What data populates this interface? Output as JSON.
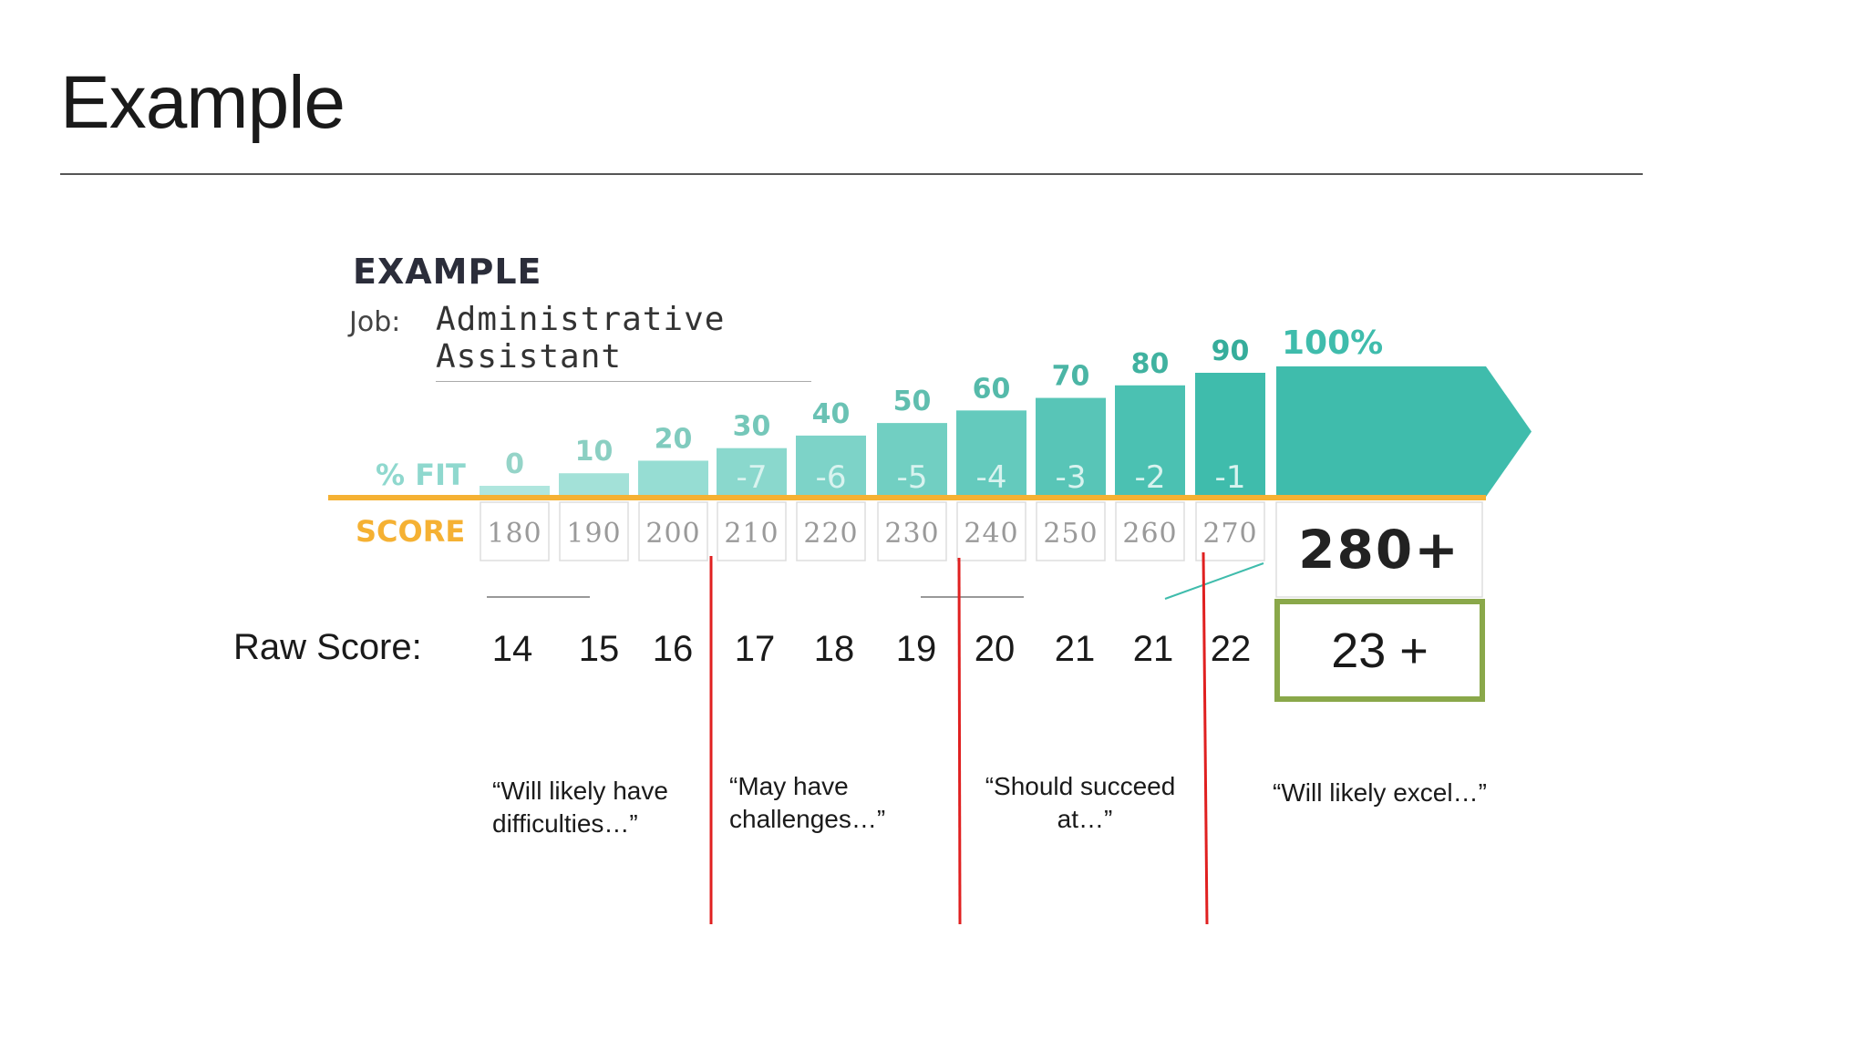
{
  "slide": {
    "title": "Example"
  },
  "example": {
    "heading": "EXAMPLE",
    "job_label": "Job:",
    "job_value": "Administrative Assistant"
  },
  "colors": {
    "teal": "#3fbcac",
    "teal_light": "#8fd8ce",
    "orange": "#f5b133",
    "red": "#e02020",
    "green": "#8aa84a"
  },
  "chart_data": {
    "type": "bar",
    "row_labels": {
      "fit": "% FIT",
      "score": "SCORE"
    },
    "categories": [
      "180",
      "190",
      "200",
      "210",
      "220",
      "230",
      "240",
      "250",
      "260",
      "270",
      "280+"
    ],
    "values": [
      0,
      10,
      20,
      30,
      40,
      50,
      60,
      70,
      80,
      90,
      100
    ],
    "value_labels": [
      "0",
      "10",
      "20",
      "30",
      "40",
      "50",
      "60",
      "70",
      "80",
      "90",
      "100%"
    ],
    "inner_labels": [
      "",
      "",
      "",
      "-7",
      "-6",
      "-5",
      "-4",
      "-3",
      "-2",
      "-1",
      ""
    ],
    "ylim": [
      0,
      100
    ]
  },
  "raw": {
    "label": "Raw Score:",
    "values": [
      "14",
      "15",
      "16",
      "17",
      "18",
      "19",
      "20",
      "21",
      "21",
      "22"
    ],
    "best": "23 +"
  },
  "descriptions": [
    {
      "line1": "“Will likely have",
      "line2": "difficulties…”"
    },
    {
      "line1": "“May have",
      "line2": "challenges…”"
    },
    {
      "line1": "“Should succeed",
      "line2": "at…”"
    },
    {
      "line1": "“Will likely excel…”",
      "line2": ""
    }
  ]
}
